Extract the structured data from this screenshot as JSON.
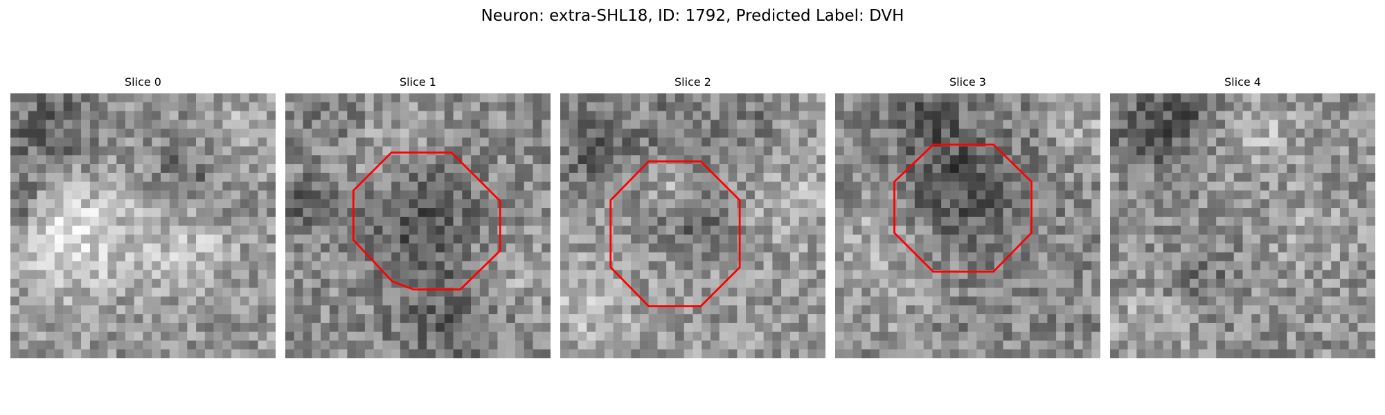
{
  "figure": {
    "title": "Neuron: extra-SHL18, ID: 1792, Predicted Label: DVH",
    "neuron": "extra-SHL18",
    "id": 1792,
    "predicted_label": "DVH"
  },
  "panels": [
    {
      "title": "Slice 0",
      "roi_outline": false
    },
    {
      "title": "Slice 1",
      "roi_outline": true
    },
    {
      "title": "Slice 2",
      "roi_outline": true
    },
    {
      "title": "Slice 3",
      "roi_outline": true
    },
    {
      "title": "Slice 4",
      "roi_outline": false
    }
  ],
  "colors": {
    "background": "#ffffff",
    "roi_outline": "#ff0000",
    "colormap": "gray"
  }
}
